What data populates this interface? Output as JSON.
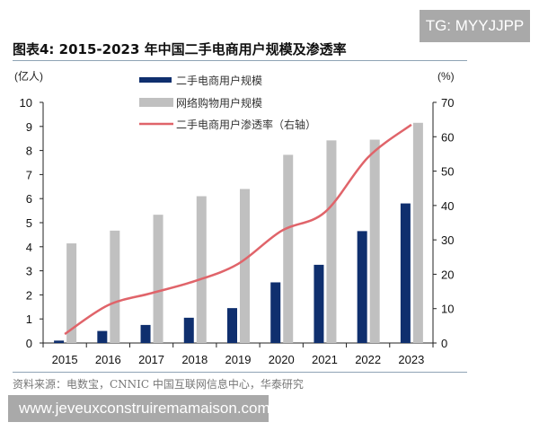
{
  "watermark_top": "TG: MYYJJPP",
  "watermark_bottom": "www.jeveuxconstruiremamaison.com",
  "source": "资料来源：电数宝，CNNIC 中国互联网信息中心，华泰研究",
  "chart_data": {
    "type": "bar",
    "title": "图表4:  2015-2023 年中国二手电商用户规模及渗透率",
    "ylabel": "(亿人)",
    "ylabel_right": "(%)",
    "ylim": [
      0,
      10
    ],
    "ylim_right": [
      0,
      70
    ],
    "yticks": [
      0,
      1,
      2,
      3,
      4,
      5,
      6,
      7,
      8,
      9,
      10
    ],
    "yticks_right": [
      0,
      10,
      20,
      30,
      40,
      50,
      60,
      70
    ],
    "grid": false,
    "legend_position": "top-center",
    "categories": [
      "2015",
      "2016",
      "2017",
      "2018",
      "2019",
      "2020",
      "2021",
      "2022",
      "2023"
    ],
    "series": [
      {
        "name": "二手电商用户规模",
        "type": "bar",
        "axis": "left",
        "color": "#0f2f6e",
        "values": [
          0.1,
          0.5,
          0.75,
          1.05,
          1.45,
          2.52,
          3.25,
          4.65,
          5.8
        ]
      },
      {
        "name": "网络购物用户规模",
        "type": "bar",
        "axis": "left",
        "color": "#c0c0c0",
        "values": [
          4.14,
          4.67,
          5.33,
          6.1,
          6.4,
          7.82,
          8.42,
          8.45,
          9.15
        ]
      },
      {
        "name": "二手电商用户渗透率（右轴）",
        "type": "line",
        "axis": "right",
        "color": "#e0646a",
        "values": [
          2.6,
          11,
          14.5,
          18,
          23,
          32.6,
          38,
          54,
          63.5
        ]
      }
    ]
  }
}
